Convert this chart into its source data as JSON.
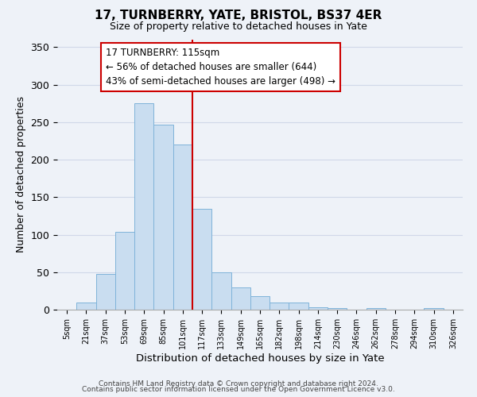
{
  "title": "17, TURNBERRY, YATE, BRISTOL, BS37 4ER",
  "subtitle": "Size of property relative to detached houses in Yate",
  "xlabel": "Distribution of detached houses by size in Yate",
  "ylabel": "Number of detached properties",
  "bar_color": "#c9ddf0",
  "bar_edge_color": "#7fb3d9",
  "bin_labels": [
    "5sqm",
    "21sqm",
    "37sqm",
    "53sqm",
    "69sqm",
    "85sqm",
    "101sqm",
    "117sqm",
    "133sqm",
    "149sqm",
    "165sqm",
    "182sqm",
    "198sqm",
    "214sqm",
    "230sqm",
    "246sqm",
    "262sqm",
    "278sqm",
    "294sqm",
    "310sqm",
    "326sqm"
  ],
  "bar_heights": [
    0,
    10,
    48,
    104,
    275,
    247,
    220,
    135,
    50,
    30,
    18,
    10,
    10,
    3,
    2,
    0,
    2,
    0,
    0,
    2,
    0
  ],
  "property_line_color": "#cc0000",
  "annotation_line1": "17 TURNBERRY: 115sqm",
  "annotation_line2": "← 56% of detached houses are smaller (644)",
  "annotation_line3": "43% of semi-detached houses are larger (498) →",
  "annotation_box_color": "#ffffff",
  "annotation_box_edge": "#cc0000",
  "ylim": [
    0,
    360
  ],
  "yticks": [
    0,
    50,
    100,
    150,
    200,
    250,
    300,
    350
  ],
  "footer1": "Contains HM Land Registry data © Crown copyright and database right 2024.",
  "footer2": "Contains public sector information licensed under the Open Government Licence v3.0.",
  "background_color": "#eef2f8",
  "grid_color": "#d0d8e8"
}
